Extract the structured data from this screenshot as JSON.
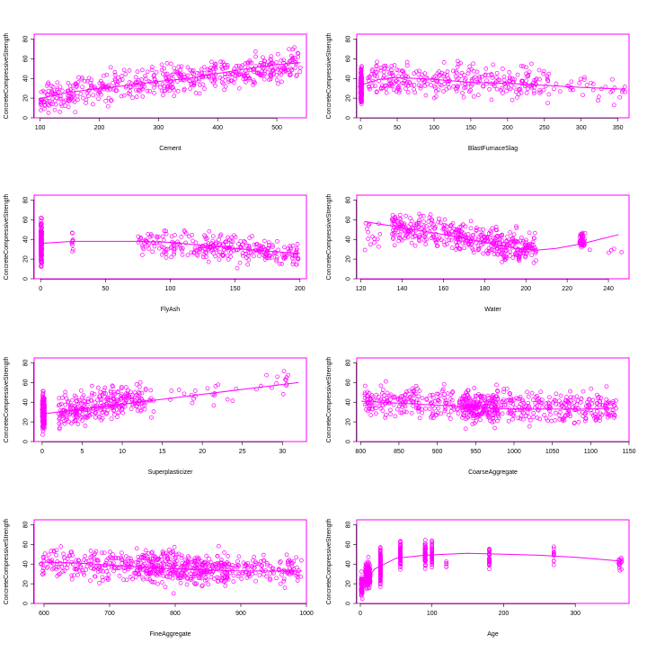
{
  "accent_color": "#ff00ff",
  "chart_data": [
    {
      "type": "scatter",
      "xlabel": "Cement",
      "ylabel": "ConcreteCompressiveStrength",
      "xlim": [
        90,
        550
      ],
      "ylim": [
        0,
        85
      ],
      "xticks": [
        100,
        200,
        300,
        400,
        500
      ],
      "yticks": [
        0,
        20,
        40,
        60,
        80
      ],
      "smooth": [
        [
          102,
          20
        ],
        [
          150,
          26
        ],
        [
          200,
          30
        ],
        [
          250,
          33
        ],
        [
          300,
          37
        ],
        [
          350,
          40
        ],
        [
          400,
          45
        ],
        [
          450,
          50
        ],
        [
          500,
          54
        ],
        [
          540,
          56
        ]
      ],
      "clusters": [
        {
          "x": [
            100,
            540
          ],
          "y": [
            5,
            80
          ],
          "n": 520,
          "center_trend": [
            [
              100,
              20
            ],
            [
              540,
              55
            ]
          ],
          "spread": 15
        }
      ]
    },
    {
      "type": "scatter",
      "xlabel": "BlastFurnaceSlag",
      "ylabel": "ConcreteCompressiveStrength",
      "xlim": [
        -5,
        365
      ],
      "ylim": [
        0,
        85
      ],
      "xticks": [
        0,
        50,
        100,
        150,
        200,
        250,
        300,
        350
      ],
      "yticks": [
        0,
        20,
        40,
        60,
        80
      ],
      "smooth": [
        [
          0,
          33
        ],
        [
          25,
          39
        ],
        [
          50,
          41
        ],
        [
          100,
          39
        ],
        [
          150,
          36
        ],
        [
          200,
          35
        ],
        [
          250,
          33
        ],
        [
          300,
          31
        ],
        [
          360,
          29
        ]
      ],
      "clusters": [
        {
          "x": [
            0,
            2
          ],
          "y": [
            2,
            80
          ],
          "n": 170,
          "center_trend": [
            [
              0,
              32
            ],
            [
              2,
              32
            ]
          ],
          "spread": 18
        },
        {
          "x": [
            10,
            250
          ],
          "y": [
            5,
            82
          ],
          "n": 300,
          "center_trend": [
            [
              10,
              40
            ],
            [
              250,
              35
            ]
          ],
          "spread": 16
        },
        {
          "x": [
            250,
            360
          ],
          "y": [
            10,
            80
          ],
          "n": 40,
          "center_trend": [
            [
              250,
              33
            ],
            [
              360,
              30
            ]
          ],
          "spread": 14
        }
      ]
    },
    {
      "type": "scatter",
      "xlabel": "FlyAsh",
      "ylabel": "ConcreteCompressiveStrength",
      "xlim": [
        -5,
        205
      ],
      "ylim": [
        0,
        85
      ],
      "xticks": [
        0,
        50,
        100,
        150,
        200
      ],
      "yticks": [
        0,
        20,
        40,
        60,
        80
      ],
      "smooth": [
        [
          0,
          36
        ],
        [
          25,
          38
        ],
        [
          50,
          38
        ],
        [
          75,
          38
        ],
        [
          100,
          37
        ],
        [
          125,
          34
        ],
        [
          150,
          31
        ],
        [
          175,
          28
        ],
        [
          200,
          26
        ]
      ],
      "clusters": [
        {
          "x": [
            0,
            1
          ],
          "y": [
            2,
            82
          ],
          "n": 200,
          "center_trend": [
            [
              0,
              36
            ],
            [
              1,
              36
            ]
          ],
          "spread": 19
        },
        {
          "x": [
            24,
            25
          ],
          "y": [
            12,
            66
          ],
          "n": 10,
          "center_trend": [
            [
              24,
              35
            ],
            [
              25,
              35
            ]
          ],
          "spread": 14
        },
        {
          "x": [
            75,
            200
          ],
          "y": [
            5,
            76
          ],
          "n": 290,
          "center_trend": [
            [
              75,
              38
            ],
            [
              200,
              26
            ]
          ],
          "spread": 13
        }
      ]
    },
    {
      "type": "scatter",
      "xlabel": "Water",
      "ylabel": "ConcreteCompressiveStrength",
      "xlim": [
        118,
        250
      ],
      "ylim": [
        0,
        85
      ],
      "xticks": [
        120,
        140,
        160,
        180,
        200,
        220,
        240
      ],
      "yticks": [
        0,
        20,
        40,
        60,
        80
      ],
      "smooth": [
        [
          122,
          58
        ],
        [
          140,
          52
        ],
        [
          160,
          45
        ],
        [
          180,
          37
        ],
        [
          195,
          31
        ],
        [
          205,
          29
        ],
        [
          215,
          31
        ],
        [
          228,
          36
        ],
        [
          245,
          45
        ]
      ],
      "clusters": [
        {
          "x": [
            121,
            130
          ],
          "y": [
            5,
            60
          ],
          "n": 15,
          "center_trend": [
            [
              121,
              40
            ],
            [
              130,
              40
            ]
          ],
          "spread": 16
        },
        {
          "x": [
            135,
            205
          ],
          "y": [
            3,
            82
          ],
          "n": 430,
          "center_trend": [
            [
              135,
              55
            ],
            [
              205,
              29
            ]
          ],
          "spread": 15
        },
        {
          "x": [
            226,
            229
          ],
          "y": [
            25,
            55
          ],
          "n": 40,
          "center_trend": [
            [
              226,
              40
            ],
            [
              229,
              40
            ]
          ],
          "spread": 8
        },
        {
          "x": [
            230,
            247
          ],
          "y": [
            25,
            35
          ],
          "n": 5,
          "center_trend": [
            [
              230,
              30
            ],
            [
              247,
              30
            ]
          ],
          "spread": 4
        }
      ]
    },
    {
      "type": "scatter",
      "xlabel": "Superplasticizer",
      "ylabel": "ConcreteCompressiveStrength",
      "xlim": [
        -1,
        33
      ],
      "ylim": [
        0,
        85
      ],
      "xticks": [
        0,
        5,
        10,
        15,
        20,
        25,
        30
      ],
      "yticks": [
        0,
        20,
        40,
        60,
        80
      ],
      "smooth": [
        [
          0,
          28
        ],
        [
          5,
          33
        ],
        [
          10,
          38
        ],
        [
          15,
          43
        ],
        [
          20,
          48
        ],
        [
          25,
          53
        ],
        [
          32,
          60
        ]
      ],
      "clusters": [
        {
          "x": [
            0,
            0.3
          ],
          "y": [
            2,
            75
          ],
          "n": 200,
          "center_trend": [
            [
              0,
              30
            ],
            [
              0.3,
              30
            ]
          ],
          "spread": 17
        },
        {
          "x": [
            2,
            13
          ],
          "y": [
            5,
            80
          ],
          "n": 290,
          "center_trend": [
            [
              2,
              30
            ],
            [
              13,
              45
            ]
          ],
          "spread": 15
        },
        {
          "x": [
            13,
            32
          ],
          "y": [
            10,
            82
          ],
          "n": 40,
          "center_trend": [
            [
              13,
              40
            ],
            [
              32,
              60
            ]
          ],
          "spread": 15
        }
      ]
    },
    {
      "type": "scatter",
      "xlabel": "CoarseAggregate",
      "ylabel": "ConcreteCompressiveStrength",
      "xlim": [
        795,
        1150
      ],
      "ylim": [
        0,
        85
      ],
      "xticks": [
        800,
        850,
        900,
        950,
        1000,
        1050,
        1100,
        1150
      ],
      "yticks": [
        0,
        20,
        40,
        60,
        80
      ],
      "smooth": [
        [
          801,
          41
        ],
        [
          850,
          39
        ],
        [
          900,
          37
        ],
        [
          950,
          35
        ],
        [
          1000,
          33
        ],
        [
          1050,
          33
        ],
        [
          1100,
          33
        ],
        [
          1130,
          34
        ]
      ],
      "clusters": [
        {
          "x": [
            801,
            1134
          ],
          "y": [
            3,
            80
          ],
          "n": 520,
          "center_trend": [
            [
              801,
              41
            ],
            [
              1134,
              34
            ]
          ],
          "spread": 15
        },
        {
          "x": [
            932,
            980
          ],
          "y": [
            5,
            82
          ],
          "n": 140,
          "center_trend": [
            [
              932,
              35
            ],
            [
              980,
              35
            ]
          ],
          "spread": 17
        }
      ]
    },
    {
      "type": "scatter",
      "xlabel": "FineAggregate",
      "ylabel": "ConcreteCompressiveStrength",
      "xlim": [
        585,
        1000
      ],
      "ylim": [
        0,
        85
      ],
      "xticks": [
        600,
        700,
        800,
        900,
        1000
      ],
      "yticks": [
        0,
        20,
        40,
        60,
        80
      ],
      "smooth": [
        [
          594,
          42
        ],
        [
          650,
          41
        ],
        [
          700,
          39
        ],
        [
          750,
          37
        ],
        [
          800,
          35
        ],
        [
          850,
          34
        ],
        [
          900,
          33
        ],
        [
          950,
          33
        ],
        [
          993,
          33
        ]
      ],
      "clusters": [
        {
          "x": [
            594,
            993
          ],
          "y": [
            3,
            82
          ],
          "n": 460,
          "center_trend": [
            [
              594,
              42
            ],
            [
              993,
              33
            ]
          ],
          "spread": 15
        },
        {
          "x": [
            740,
            880
          ],
          "y": [
            3,
            80
          ],
          "n": 200,
          "center_trend": [
            [
              740,
              37
            ],
            [
              880,
              34
            ]
          ],
          "spread": 16
        }
      ]
    },
    {
      "type": "scatter",
      "xlabel": "Age",
      "ylabel": "ConcreteCompressiveStrength",
      "xlim": [
        -5,
        375
      ],
      "ylim": [
        0,
        85
      ],
      "xticks": [
        0,
        100,
        200,
        300
      ],
      "yticks": [
        0,
        20,
        40,
        60,
        80
      ],
      "smooth": [
        [
          1,
          10
        ],
        [
          10,
          25
        ],
        [
          20,
          35
        ],
        [
          28,
          38
        ],
        [
          50,
          46
        ],
        [
          90,
          49
        ],
        [
          120,
          50
        ],
        [
          150,
          51
        ],
        [
          200,
          50
        ],
        [
          250,
          49
        ],
        [
          300,
          47
        ],
        [
          365,
          43
        ]
      ],
      "clusters": [
        {
          "x": [
            1,
            3
          ],
          "y": [
            2,
            40
          ],
          "n": 80,
          "center_trend": [
            [
              1,
              18
            ],
            [
              3,
              18
            ]
          ],
          "spread": 10
        },
        {
          "x": [
            7,
            14
          ],
          "y": [
            5,
            60
          ],
          "n": 150,
          "center_trend": [
            [
              7,
              28
            ],
            [
              14,
              30
            ]
          ],
          "spread": 13
        },
        {
          "x": [
            28,
            28
          ],
          "y": [
            8,
            80
          ],
          "n": 300,
          "center_trend": [
            [
              28,
              38
            ],
            [
              28,
              38
            ]
          ],
          "spread": 15
        },
        {
          "x": [
            56,
            56
          ],
          "y": [
            20,
            80
          ],
          "n": 80,
          "center_trend": [
            [
              56,
              50
            ],
            [
              56,
              50
            ]
          ],
          "spread": 13
        },
        {
          "x": [
            90,
            91
          ],
          "y": [
            20,
            82
          ],
          "n": 60,
          "center_trend": [
            [
              90,
              50
            ],
            [
              91,
              50
            ]
          ],
          "spread": 12
        },
        {
          "x": [
            100,
            100
          ],
          "y": [
            35,
            70
          ],
          "n": 40,
          "center_trend": [
            [
              100,
              50
            ],
            [
              100,
              50
            ]
          ],
          "spread": 10
        },
        {
          "x": [
            120,
            120
          ],
          "y": [
            35,
            45
          ],
          "n": 5,
          "center_trend": [
            [
              120,
              40
            ],
            [
              120,
              40
            ]
          ],
          "spread": 4
        },
        {
          "x": [
            180,
            180
          ],
          "y": [
            25,
            72
          ],
          "n": 25,
          "center_trend": [
            [
              180,
              45
            ],
            [
              180,
              45
            ]
          ],
          "spread": 10
        },
        {
          "x": [
            270,
            270
          ],
          "y": [
            35,
            75
          ],
          "n": 13,
          "center_trend": [
            [
              270,
              50
            ],
            [
              270,
              50
            ]
          ],
          "spread": 10
        },
        {
          "x": [
            360,
            365
          ],
          "y": [
            25,
            55
          ],
          "n": 16,
          "center_trend": [
            [
              360,
              40
            ],
            [
              365,
              40
            ]
          ],
          "spread": 8
        }
      ]
    }
  ]
}
